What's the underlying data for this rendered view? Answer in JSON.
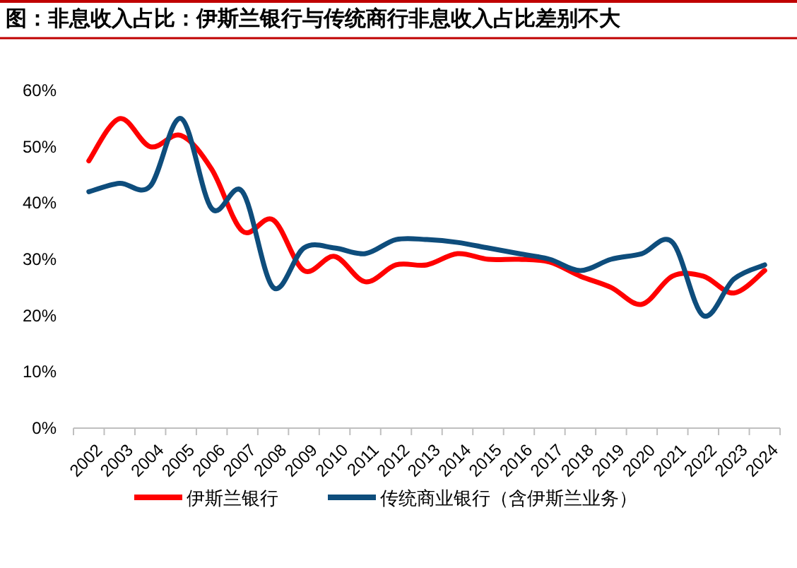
{
  "chart_data": {
    "type": "line",
    "title": "图：非息收入占比：伊斯兰银行与传统商行非息收入占比差别不大",
    "categories": [
      "2002",
      "2003",
      "2004",
      "2005",
      "2006",
      "2007",
      "2008",
      "2009",
      "2010",
      "2011",
      "2012",
      "2013",
      "2014",
      "2015",
      "2016",
      "2017",
      "2018",
      "2019",
      "2020",
      "2021",
      "2022",
      "2023",
      "2024"
    ],
    "series": [
      {
        "name": "伊斯兰银行",
        "color": "#ff0000",
        "values": [
          47.5,
          55,
          50,
          52,
          46,
          35,
          37,
          28,
          30.5,
          26,
          29,
          29,
          31,
          30,
          30,
          29.5,
          27,
          25,
          22,
          27,
          27,
          24,
          28
        ]
      },
      {
        "name": "传统商业银行（含伊斯兰业务）",
        "color": "#0e4d7c",
        "values": [
          42,
          43.5,
          43,
          55,
          39,
          42,
          25,
          32,
          32,
          31,
          33.5,
          33.5,
          33,
          32,
          31,
          30,
          28,
          30,
          31,
          33,
          20,
          26.5,
          29
        ]
      }
    ],
    "ylim": [
      0,
      60
    ],
    "yticks": [
      {
        "value": 0,
        "label": "0%"
      },
      {
        "value": 10,
        "label": "10%"
      },
      {
        "value": 20,
        "label": "20%"
      },
      {
        "value": 30,
        "label": "30%"
      },
      {
        "value": 40,
        "label": "40%"
      },
      {
        "value": 50,
        "label": "50%"
      },
      {
        "value": 60,
        "label": "60%"
      }
    ],
    "legend": "bottom"
  }
}
